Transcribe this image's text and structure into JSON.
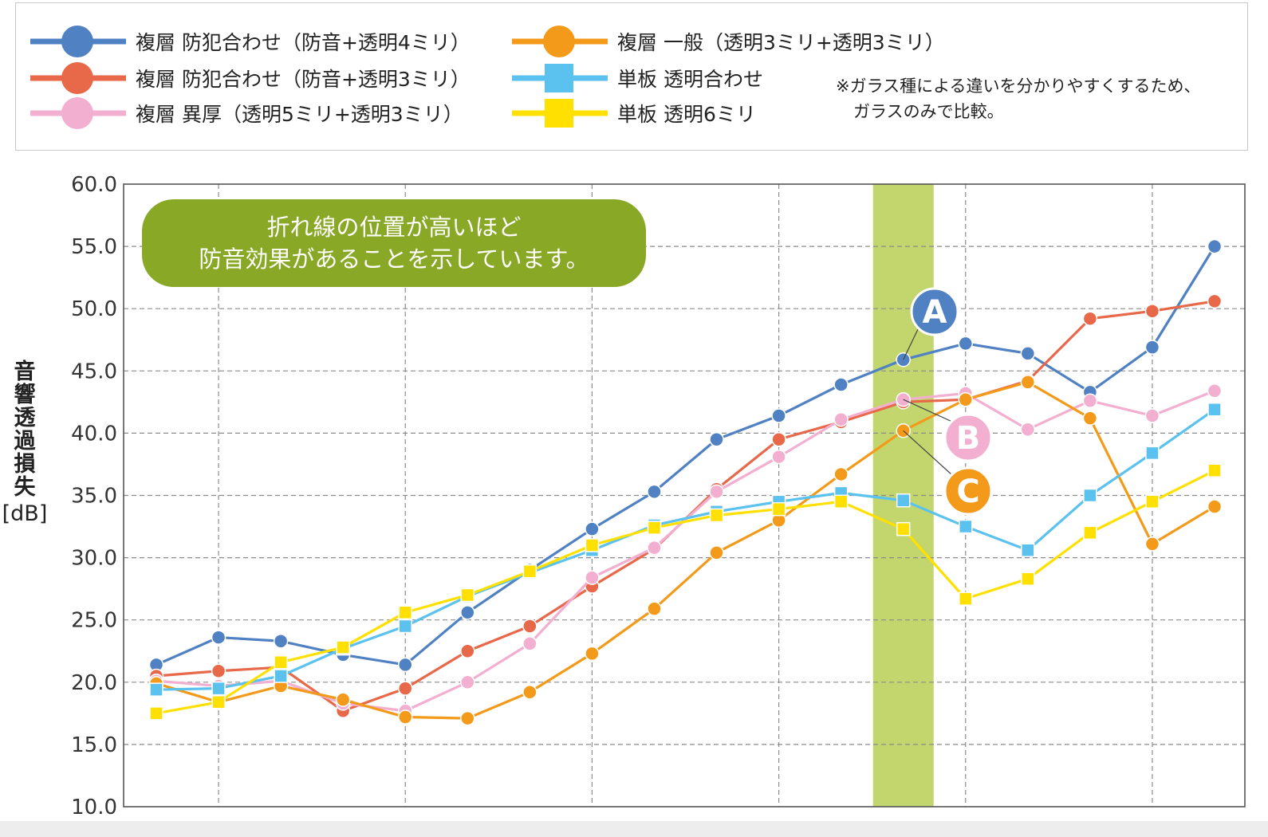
{
  "legend": {
    "note_line1": "※ガラス種による違いを分かりやすくするため、",
    "note_line2": "ガラスのみで比較。"
  },
  "callout": {
    "line1": "折れ線の位置が高いほど",
    "line2": "防音効果があることを示しています。"
  },
  "chart_data": {
    "type": "line",
    "ylabel_chars": [
      "音",
      "響",
      "透",
      "過",
      "損",
      "失"
    ],
    "yunit": "[dB]",
    "ylim": [
      10,
      60
    ],
    "yticks": [
      "10.0",
      "15.0",
      "20.0",
      "25.0",
      "30.0",
      "35.0",
      "40.0",
      "45.0",
      "50.0",
      "55.0",
      "60.0"
    ],
    "grid": true,
    "x_points": 18,
    "highlight_band_index": 12,
    "series": [
      {
        "name": "複層 防犯合わせ（防音+透明4ミリ）",
        "color": "#4f81c3",
        "marker": "circle",
        "values": [
          21.4,
          23.6,
          23.3,
          22.2,
          21.4,
          25.6,
          29.0,
          32.3,
          35.3,
          39.5,
          41.4,
          43.9,
          45.9,
          47.2,
          46.4,
          43.3,
          46.9,
          55.0
        ]
      },
      {
        "name": "複層 防犯合わせ（防音+透明3ミリ）",
        "color": "#e8684a",
        "marker": "circle",
        "values": [
          20.5,
          20.9,
          21.2,
          17.7,
          19.5,
          22.5,
          24.5,
          27.7,
          30.7,
          35.5,
          39.5,
          40.9,
          42.5,
          42.7,
          44.2,
          49.2,
          49.8,
          50.6
        ]
      },
      {
        "name": "複層 異厚（透明5ミリ+透明3ミリ）",
        "color": "#f3afd0",
        "marker": "circle",
        "values": [
          20.1,
          19.7,
          20.1,
          18.3,
          17.7,
          20.0,
          23.1,
          28.4,
          30.8,
          35.3,
          38.1,
          41.1,
          42.7,
          43.2,
          40.3,
          42.6,
          41.4,
          43.4
        ]
      },
      {
        "name": "複層 一般（透明3ミリ+透明3ミリ）",
        "color": "#f39a1a",
        "marker": "circle",
        "values": [
          19.9,
          18.4,
          19.7,
          18.6,
          17.2,
          17.1,
          19.2,
          22.3,
          25.9,
          30.4,
          33.0,
          36.7,
          40.2,
          42.7,
          44.1,
          41.2,
          31.1,
          34.1
        ]
      },
      {
        "name": "単板 透明合わせ",
        "color": "#5bc1ee",
        "marker": "square",
        "values": [
          19.4,
          19.5,
          20.5,
          22.7,
          24.5,
          26.9,
          28.8,
          30.6,
          32.6,
          33.7,
          34.5,
          35.2,
          34.6,
          32.5,
          30.6,
          35.0,
          38.4,
          41.9
        ]
      },
      {
        "name": "単板 透明6ミリ",
        "color": "#ffe000",
        "marker": "square",
        "values": [
          17.5,
          18.4,
          21.6,
          22.8,
          25.6,
          27.0,
          28.9,
          31.0,
          32.4,
          33.4,
          33.9,
          34.5,
          32.3,
          26.7,
          28.3,
          32.0,
          34.5,
          37.0
        ]
      }
    ],
    "badges": [
      {
        "label": "A",
        "color": "#4f81c3",
        "series": 0,
        "point": 12
      },
      {
        "label": "B",
        "color": "#f3afd0",
        "series": 2,
        "point": 12
      },
      {
        "label": "C",
        "color": "#f39a1a",
        "series": 3,
        "point": 12
      }
    ]
  }
}
